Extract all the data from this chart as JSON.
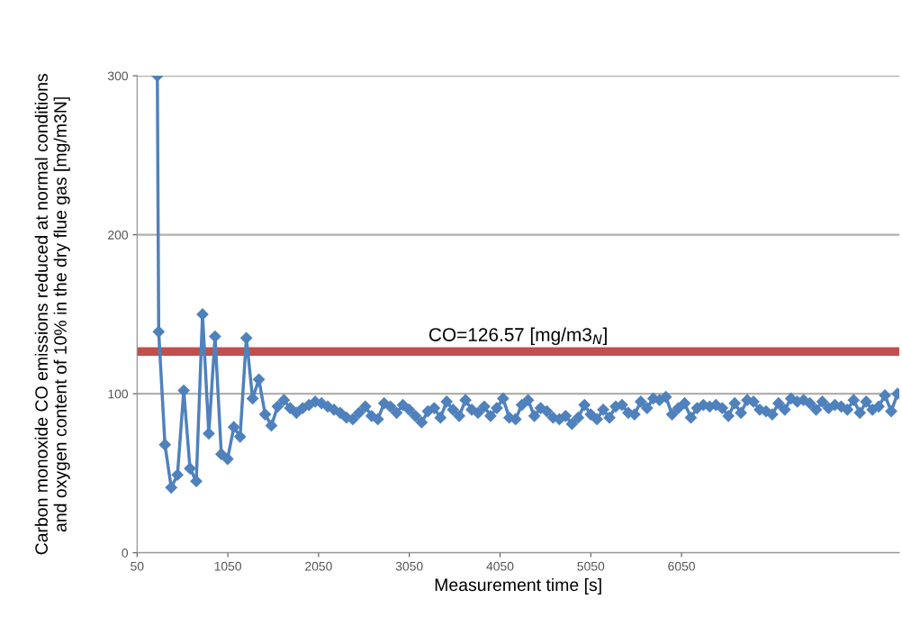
{
  "chart_data": {
    "type": "line",
    "xlabel": "Measurement time [s]",
    "ylabel": "Carbon monoxide CO emissions reduced at normal conditions\nand oxygen content of 10% in the dry flue gas [mg/m3N]",
    "xlim": [
      50,
      8450
    ],
    "xticks": [
      50,
      1050,
      2050,
      3050,
      4050,
      5050,
      6050
    ],
    "ylim": [
      0,
      300
    ],
    "yticks": [
      0,
      100,
      200,
      300
    ],
    "grid": "y",
    "marker": "diamond",
    "line_style": "solid",
    "ref_lines": [
      {
        "axis": "y",
        "value": 126.57,
        "label": "CO=126.57 [mg/m3$_{N}$]",
        "color": "#c0504d",
        "line_style": "solid"
      }
    ],
    "series": [
      {
        "color": "#4f81bd",
        "x": [
          273,
          288,
          357,
          426,
          495,
          564,
          633,
          702,
          771,
          840,
          909,
          978,
          1047,
          1116,
          1185,
          1254,
          1323,
          1392,
          1461,
          1530,
          1599,
          1668,
          1737,
          1806,
          1875,
          1944,
          2013,
          2082,
          2151,
          2220,
          2289,
          2358,
          2427,
          2496,
          2565,
          2634,
          2703,
          2772,
          2841,
          2910,
          2979,
          3048,
          3117,
          3186,
          3255,
          3324,
          3393,
          3462,
          3531,
          3600,
          3669,
          3738,
          3807,
          3876,
          3945,
          4014,
          4083,
          4152,
          4221,
          4290,
          4359,
          4428,
          4497,
          4566,
          4635,
          4704,
          4773,
          4842,
          4911,
          4980,
          5049,
          5118,
          5187,
          5256,
          5325,
          5394,
          5463,
          5532,
          5601,
          5670,
          5739,
          5808,
          5877,
          5946,
          6015,
          6084,
          6153,
          6222,
          6291,
          6360,
          6429,
          6498,
          6567,
          6636,
          6705,
          6774,
          6843,
          6912,
          6981,
          7050,
          7119,
          7188,
          7257,
          7326,
          7395,
          7464,
          7533,
          7602,
          7671,
          7740,
          7809,
          7878,
          7947,
          8016,
          8085,
          8154,
          8223,
          8292,
          8361,
          8430
        ],
        "values": [
          300,
          139,
          68,
          41,
          49,
          102,
          53,
          45,
          150,
          75,
          136,
          62,
          59,
          79,
          73,
          135,
          97,
          109,
          87,
          80,
          92,
          96,
          91,
          88,
          91,
          93,
          95,
          94,
          92,
          90,
          88,
          85,
          84,
          88,
          92,
          86,
          84,
          94,
          92,
          88,
          93,
          90,
          86,
          82,
          89,
          91,
          85,
          95,
          90,
          86,
          96,
          90,
          88,
          92,
          86,
          91,
          97,
          85,
          84,
          93,
          96,
          86,
          91,
          89,
          85,
          84,
          86,
          81,
          85,
          93,
          87,
          84,
          90,
          85,
          92,
          93,
          88,
          87,
          95,
          91,
          97,
          96,
          98,
          87,
          91,
          94,
          85,
          91,
          93,
          92,
          93,
          91,
          86,
          94,
          88,
          96,
          95,
          90,
          89,
          87,
          94,
          90,
          97,
          95,
          96,
          94,
          90,
          95,
          91,
          93,
          92,
          90,
          96,
          88,
          95,
          90,
          92,
          99,
          89,
          100
        ]
      }
    ]
  }
}
